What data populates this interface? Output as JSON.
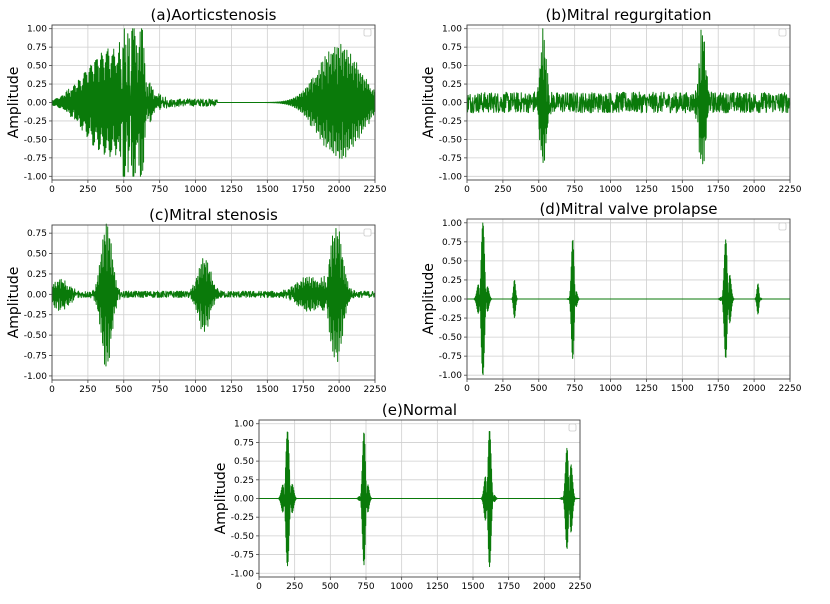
{
  "chart_data": [
    {
      "type": "line",
      "title": "(a)Aorticstenosis",
      "ylabel": "Amplitude",
      "xlim": [
        0,
        2250
      ],
      "ylim": [
        -1.05,
        1.05
      ],
      "xticks": [
        "0",
        "250",
        "500",
        "750",
        "1000",
        "1250",
        "1500",
        "1750",
        "2000",
        "2250"
      ],
      "yticks": [
        "1.00",
        "0.75",
        "0.50",
        "0.25",
        "0.00",
        "-0.25",
        "-0.50",
        "-0.75",
        "-1.00"
      ],
      "grid": true,
      "color": "#0a7a0a",
      "events": [
        {
          "center": 400,
          "width": 230,
          "amp": 0.7,
          "freq": 1.1
        },
        {
          "center": 600,
          "width": 60,
          "amp": 1.0,
          "freq": 1.2
        },
        {
          "center": 520,
          "width": 40,
          "amp": 0.95,
          "freq": 1.3
        },
        {
          "center": 2000,
          "width": 200,
          "amp": 0.75,
          "freq": 1.2
        }
      ],
      "noise": [
        {
          "from": 80,
          "to": 1150,
          "amp": 0.05
        },
        {
          "from": 1800,
          "to": 2250,
          "amp": 0.05
        }
      ]
    },
    {
      "type": "line",
      "title": "(b)Mitral regurgitation",
      "ylabel": "Amplitude",
      "xlim": [
        0,
        2250
      ],
      "ylim": [
        -1.05,
        1.05
      ],
      "xticks": [
        "0",
        "250",
        "500",
        "750",
        "1000",
        "1250",
        "1500",
        "1750",
        "2000",
        "2250"
      ],
      "yticks": [
        "1.00",
        "0.75",
        "0.50",
        "0.25",
        "0.00",
        "-0.25",
        "-0.50",
        "-0.75",
        "-1.00"
      ],
      "grid": true,
      "color": "#0a7a0a",
      "events": [
        {
          "center": 530,
          "width": 30,
          "amp": 0.95,
          "freq": 1.3
        },
        {
          "center": 1640,
          "width": 30,
          "amp": 0.95,
          "freq": 1.3
        }
      ],
      "noise": [
        {
          "from": 0,
          "to": 2250,
          "amp": 0.14
        }
      ]
    },
    {
      "type": "line",
      "title": "(c)Mitral stenosis",
      "ylabel": "Amplitude",
      "xlim": [
        0,
        2250
      ],
      "ylim": [
        -1.05,
        0.85
      ],
      "xticks": [
        "0",
        "250",
        "500",
        "750",
        "1000",
        "1250",
        "1500",
        "1750",
        "2000",
        "2250"
      ],
      "yticks": [
        "0.75",
        "0.50",
        "0.25",
        "0.00",
        "-0.25",
        "-0.50",
        "-0.75",
        "-1.00"
      ],
      "grid": true,
      "color": "#0a7a0a",
      "events": [
        {
          "center": 380,
          "width": 50,
          "amp": 0.9,
          "freq": 1.3
        },
        {
          "center": 1060,
          "width": 60,
          "amp": 0.45,
          "freq": 1.3
        },
        {
          "center": 1980,
          "width": 60,
          "amp": 0.85,
          "freq": 1.3
        },
        {
          "center": 60,
          "width": 80,
          "amp": 0.18,
          "freq": 1.2
        },
        {
          "center": 1800,
          "width": 120,
          "amp": 0.2,
          "freq": 1.2
        }
      ],
      "noise": [
        {
          "from": 0,
          "to": 2250,
          "amp": 0.04
        }
      ]
    },
    {
      "type": "line",
      "title": "(d)Mitral valve prolapse",
      "ylabel": "Amplitude",
      "xlim": [
        0,
        2250
      ],
      "ylim": [
        -1.05,
        1.05
      ],
      "xticks": [
        "0",
        "250",
        "500",
        "750",
        "1000",
        "1250",
        "1500",
        "1750",
        "2000",
        "2250"
      ],
      "yticks": [
        "1.00",
        "0.75",
        "0.50",
        "0.25",
        "0.00",
        "-0.25",
        "-0.50",
        "-0.75",
        "-1.00"
      ],
      "grid": true,
      "color": "#0a7a0a",
      "events": [
        {
          "center": 110,
          "width": 28,
          "amp": 1.0,
          "freq": 1.5
        },
        {
          "center": 330,
          "width": 12,
          "amp": 0.25,
          "freq": 1.5
        },
        {
          "center": 740,
          "width": 18,
          "amp": 0.85,
          "freq": 1.5
        },
        {
          "center": 1810,
          "width": 24,
          "amp": 0.92,
          "freq": 1.5
        },
        {
          "center": 2030,
          "width": 12,
          "amp": 0.25,
          "freq": 1.5
        }
      ],
      "noise": []
    },
    {
      "type": "line",
      "title": "(e)Normal",
      "ylabel": "Amplitude",
      "xlim": [
        0,
        2250
      ],
      "ylim": [
        -1.05,
        1.05
      ],
      "xticks": [
        "0",
        "250",
        "500",
        "750",
        "1000",
        "1250",
        "1500",
        "1750",
        "2000",
        "2250"
      ],
      "yticks": [
        "1.00",
        "0.75",
        "0.50",
        "0.25",
        "0.00",
        "-0.25",
        "-0.50",
        "-0.75",
        "-1.00"
      ],
      "grid": true,
      "color": "#0a7a0a",
      "events": [
        {
          "center": 200,
          "width": 30,
          "amp": 0.9,
          "freq": 1.5
        },
        {
          "center": 740,
          "width": 22,
          "amp": 0.95,
          "freq": 1.5
        },
        {
          "center": 1610,
          "width": 25,
          "amp": 1.0,
          "freq": 1.5
        },
        {
          "center": 2170,
          "width": 25,
          "amp": 0.92,
          "freq": 1.5
        }
      ],
      "noise": []
    }
  ]
}
